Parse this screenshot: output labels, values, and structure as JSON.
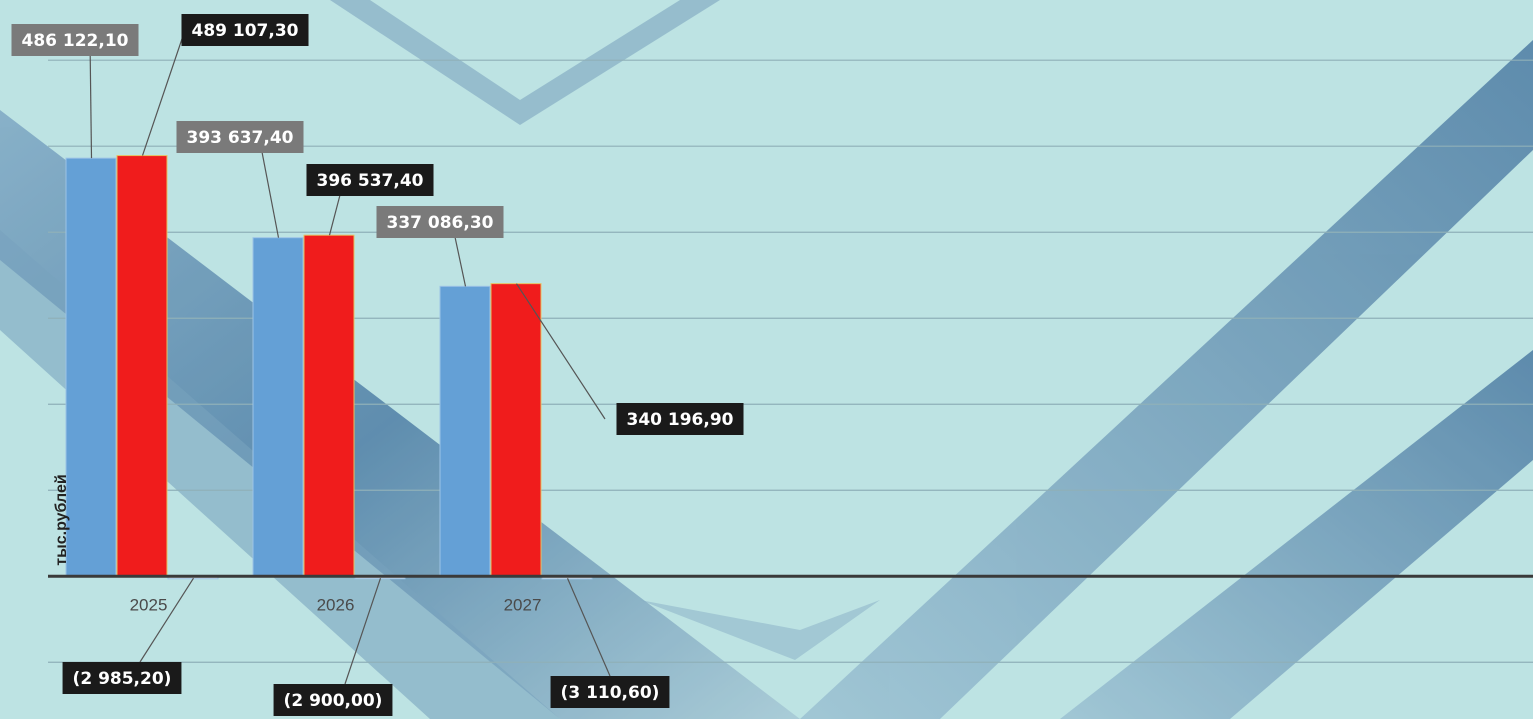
{
  "chart_data": {
    "type": "bar",
    "y_label": "тыс.рублей",
    "categories": [
      "2025",
      "2026",
      "2027"
    ],
    "series": [
      {
        "color": "#64a0d6",
        "values": [
          486122.1,
          393637.4,
          337086.3
        ],
        "value_labels": [
          "486 122,10",
          "393 637,40",
          "337 086,30"
        ]
      },
      {
        "color": "#f01c1c",
        "values": [
          489107.3,
          396537.4,
          340196.9
        ],
        "value_labels": [
          "489 107,30",
          "396 537,40",
          "340 196,90"
        ]
      },
      {
        "color": "#dde3e6",
        "values": [
          -2985.2,
          -2900.0,
          -3110.6
        ],
        "value_labels": [
          "(2 985,20)",
          "(2 900,00)",
          "(3 110,60)"
        ]
      }
    ],
    "ylim": [
      -166000,
      670000
    ],
    "yticks": [
      -100000,
      0,
      100000,
      200000,
      300000,
      400000,
      500000,
      600000
    ],
    "grid": true
  }
}
